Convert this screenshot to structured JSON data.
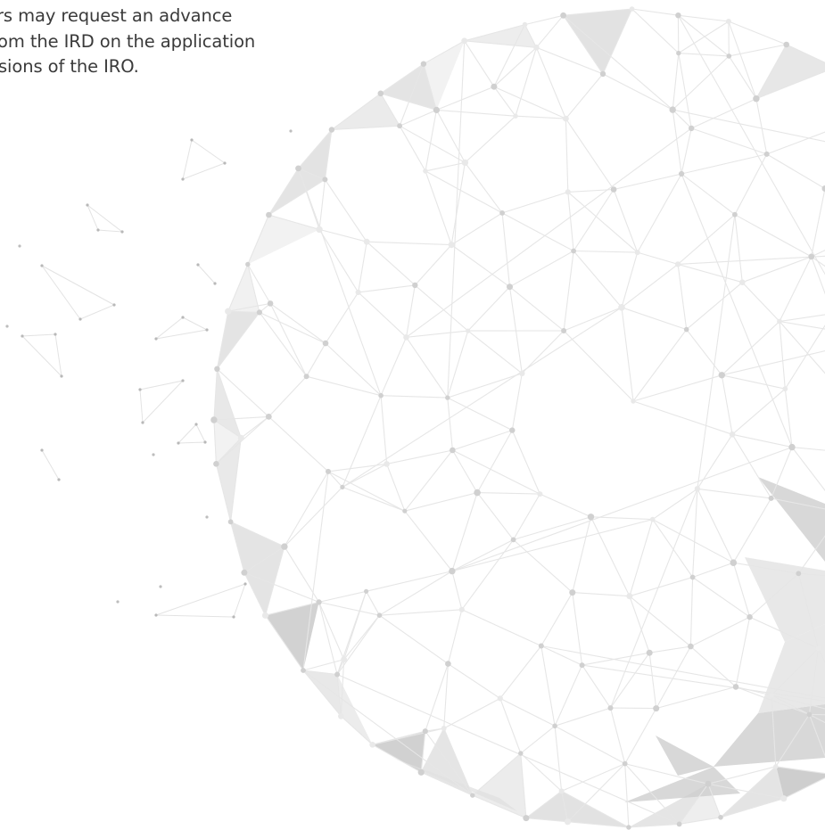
{
  "text": {
    "lines": [
      "rs may request an advance",
      "om the IRD on the application",
      "sions of the IRO."
    ]
  },
  "graphic": {
    "name": "geodesic-mesh-globe",
    "colors": {
      "line": "#e6e6e6",
      "node": "#d0d0d0",
      "facet_light": "#efefef",
      "facet_mid": "#e0e0e0",
      "facet_dark": "#cbcbcb"
    }
  }
}
